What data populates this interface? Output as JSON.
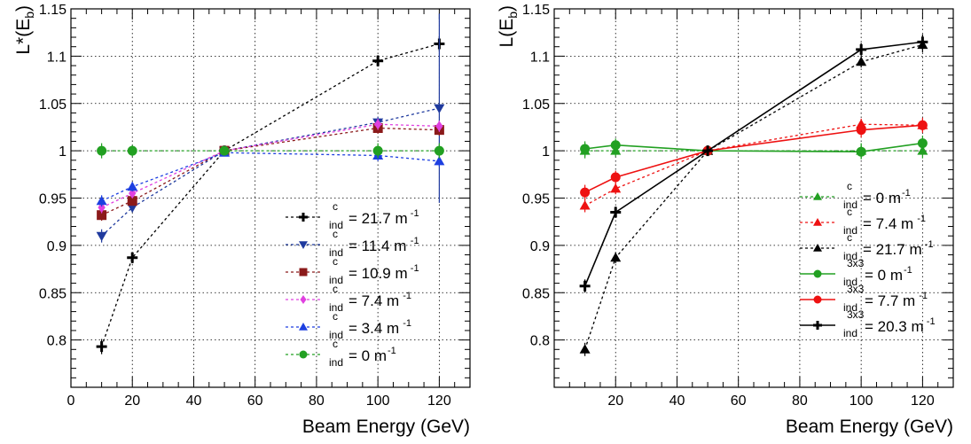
{
  "chart_data": [
    {
      "type": "line",
      "xlabel": "Beam Energy (GeV)",
      "ylabel": "L*(E_b)",
      "xlim": [
        0,
        130
      ],
      "ylim": [
        0.75,
        1.15
      ],
      "grid": true,
      "legend_position": "bottom-right",
      "x_ticks": [
        "0",
        "20",
        "40",
        "60",
        "80",
        "100",
        "120"
      ],
      "y_ticks": [
        "0.8",
        "0.85",
        "0.9",
        "0.95",
        "1",
        "1.05",
        "1.1",
        "1.15"
      ],
      "series": [
        {
          "name": "21.7 m⁻¹",
          "legend_super": "c",
          "legend_sub": "ind",
          "legend_value": "= 21.7 m",
          "legend_exp": "-1",
          "color": "#000000",
          "marker": "cross",
          "dashed": true,
          "x": [
            10,
            20,
            50,
            100,
            120
          ],
          "y": [
            0.793,
            0.887,
            1.0,
            1.095,
            1.113
          ],
          "err": [
            0.008,
            0.006,
            0.004,
            0.006,
            0.008
          ]
        },
        {
          "name": "11.4 m⁻¹",
          "legend_super": "c",
          "legend_sub": "ind",
          "legend_value": "= 11.4 m",
          "legend_exp": "-1",
          "color": "#1f3a9e",
          "marker": "triangle-down",
          "dashed": true,
          "x": [
            10,
            20,
            50,
            100,
            120
          ],
          "y": [
            0.91,
            0.94,
            1.0,
            1.03,
            1.045
          ],
          "err": [
            0.007,
            0.005,
            0.004,
            0.006,
            0.1
          ]
        },
        {
          "name": "10.9 m⁻¹",
          "legend_super": "c",
          "legend_sub": "ind",
          "legend_value": "= 10.9 m",
          "legend_exp": "-1",
          "color": "#8b1a1a",
          "marker": "square",
          "dashed": true,
          "x": [
            10,
            20,
            50,
            100,
            120
          ],
          "y": [
            0.932,
            0.947,
            1.0,
            1.024,
            1.022
          ],
          "err": [
            0.006,
            0.005,
            0.004,
            0.006,
            0.006
          ]
        },
        {
          "name": "7.4 m⁻¹",
          "legend_super": "c",
          "legend_sub": "ind",
          "legend_value": "= 7.4 m",
          "legend_exp": "-1",
          "color": "#e040e0",
          "marker": "diamond",
          "dashed": true,
          "x": [
            10,
            20,
            50,
            100,
            120
          ],
          "y": [
            0.94,
            0.955,
            1.0,
            1.028,
            1.026
          ],
          "err": [
            0.006,
            0.005,
            0.004,
            0.006,
            0.006
          ]
        },
        {
          "name": "3.4 m⁻¹",
          "legend_super": "c",
          "legend_sub": "ind",
          "legend_value": "= 3.4 m",
          "legend_exp": "-1",
          "color": "#1d3fe0",
          "marker": "triangle-up",
          "dashed": true,
          "x": [
            10,
            20,
            50,
            100,
            120
          ],
          "y": [
            0.947,
            0.962,
            0.998,
            0.995,
            0.989
          ],
          "err": [
            0.006,
            0.005,
            0.004,
            0.006,
            0.006
          ]
        },
        {
          "name": "0 m⁻¹",
          "legend_super": "c",
          "legend_sub": "ind",
          "legend_value": "= 0 m",
          "legend_exp": "-1",
          "color": "#22a022",
          "marker": "circle",
          "dashed": true,
          "x": [
            10,
            20,
            50,
            100,
            120
          ],
          "y": [
            1.0,
            1.0,
            1.0,
            1.0,
            1.0
          ],
          "err": [
            0.008,
            0.006,
            0.004,
            0.008,
            0.008
          ]
        }
      ]
    },
    {
      "type": "line",
      "xlabel": "Beam Energy (GeV)",
      "ylabel": "L(E_b)",
      "xlim": [
        0,
        130
      ],
      "ylim": [
        0.75,
        1.15
      ],
      "grid": true,
      "legend_position": "bottom-right",
      "x_ticks": [
        "20",
        "40",
        "60",
        "80",
        "100",
        "120"
      ],
      "y_ticks": [
        "0.8",
        "0.85",
        "0.9",
        "0.95",
        "1",
        "1.05",
        "1.1",
        "1.15"
      ],
      "series": [
        {
          "name": "c 0 m⁻¹",
          "legend_super": "c",
          "legend_sub": "ind",
          "legend_value": "= 0 m",
          "legend_exp": "-1",
          "color": "#22a022",
          "marker": "triangle-up",
          "dashed": true,
          "x": [
            10,
            20,
            50,
            100,
            120
          ],
          "y": [
            1.0,
            1.0,
            1.0,
            1.0,
            1.0
          ],
          "err": [
            0.008,
            0.006,
            0.004,
            0.008,
            0.008
          ]
        },
        {
          "name": "c 7.4 m⁻¹",
          "legend_super": "c",
          "legend_sub": "ind",
          "legend_value": "= 7.4 m",
          "legend_exp": "-1",
          "color": "#ee1111",
          "marker": "triangle-up",
          "dashed": true,
          "x": [
            10,
            20,
            50,
            100,
            120
          ],
          "y": [
            0.942,
            0.96,
            1.0,
            1.028,
            1.027
          ],
          "err": [
            0.007,
            0.006,
            0.004,
            0.006,
            0.006
          ]
        },
        {
          "name": "c 21.7 m⁻¹",
          "legend_super": "c",
          "legend_sub": "ind",
          "legend_value": "= 21.7 m",
          "legend_exp": "-1",
          "color": "#000000",
          "marker": "triangle-up",
          "dashed": true,
          "x": [
            10,
            20,
            50,
            100,
            120
          ],
          "y": [
            0.79,
            0.887,
            1.0,
            1.094,
            1.112
          ],
          "err": [
            0.007,
            0.006,
            0.004,
            0.006,
            0.008
          ]
        },
        {
          "name": "3x3 0 m⁻¹",
          "legend_super": "3x3",
          "legend_sub": "ind",
          "legend_value": "= 0 m",
          "legend_exp": "-1",
          "color": "#22a022",
          "marker": "circle",
          "dashed": false,
          "x": [
            10,
            20,
            50,
            100,
            120
          ],
          "y": [
            1.002,
            1.006,
            1.0,
            0.999,
            1.008
          ],
          "err": [
            0.008,
            0.007,
            0.004,
            0.008,
            0.008
          ]
        },
        {
          "name": "3x3 7.7 m⁻¹",
          "legend_super": "3x3",
          "legend_sub": "ind",
          "legend_value": "= 7.7 m",
          "legend_exp": "-1",
          "color": "#ee1111",
          "marker": "circle",
          "dashed": false,
          "x": [
            10,
            20,
            50,
            100,
            120
          ],
          "y": [
            0.956,
            0.972,
            1.0,
            1.022,
            1.027
          ],
          "err": [
            0.008,
            0.007,
            0.004,
            0.008,
            0.008
          ]
        },
        {
          "name": "3x3 20.3 m⁻¹",
          "legend_super": "3x3",
          "legend_sub": "ind",
          "legend_value": "= 20.3 m",
          "legend_exp": "-1",
          "color": "#000000",
          "marker": "cross",
          "dashed": false,
          "x": [
            10,
            20,
            50,
            100,
            120
          ],
          "y": [
            0.857,
            0.935,
            1.0,
            1.107,
            1.115
          ],
          "err": [
            0.007,
            0.006,
            0.004,
            0.007,
            0.008
          ]
        }
      ]
    }
  ]
}
